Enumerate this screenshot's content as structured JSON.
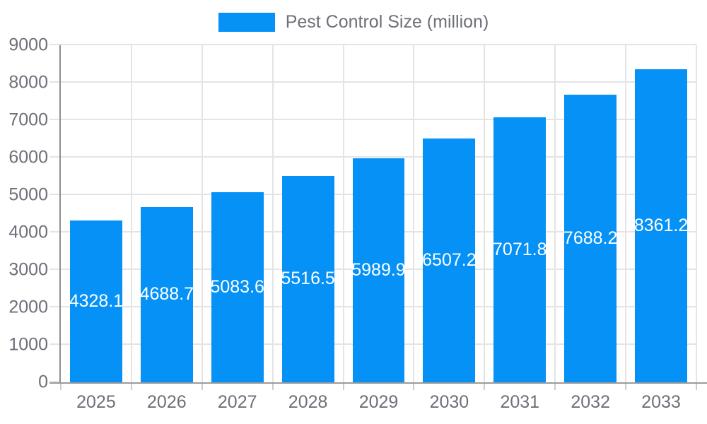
{
  "legend": {
    "label": "Pest Control Size (million)"
  },
  "chart_data": {
    "type": "bar",
    "title": "Pest Control Size (million)",
    "series_name": "Pest Control Size (million)",
    "categories": [
      "2025",
      "2026",
      "2027",
      "2028",
      "2029",
      "2030",
      "2031",
      "2032",
      "2033"
    ],
    "values": [
      4328.1,
      4688.7,
      5083.6,
      5516.5,
      5989.9,
      6507.2,
      7071.8,
      7688.2,
      8361.2
    ],
    "xlabel": "",
    "ylabel": "",
    "ylim": [
      0,
      9000
    ],
    "ytick_step": 1000,
    "grid": true,
    "legend_position": "top-center",
    "value_labels": "centered-inside-bars",
    "colors": {
      "bar": "#0591f6",
      "value_label_text": "#ffffff",
      "axis_text": "#6e7079",
      "gridline": "#e4e4e4",
      "tick": "#cccccc",
      "axis_line": "#9b9b9b",
      "background": "#ffffff"
    }
  }
}
